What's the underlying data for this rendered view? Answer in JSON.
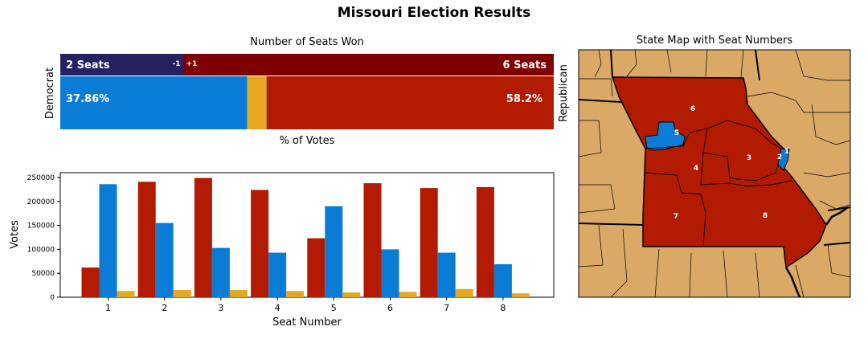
{
  "title": "Missouri Election Results",
  "seats_panel": {
    "title": "Number of Seats Won",
    "dem_axis_label": "Democrat",
    "rep_axis_label": "Republican",
    "xlabel": "% of Votes",
    "dem_seats_text": "2 Seats",
    "rep_seats_text": "6 Seats",
    "dem_change_text": "-1",
    "rep_change_text": "+1",
    "dem_pct_text": "37.86%",
    "rep_pct_text": "58.2%"
  },
  "map_panel": {
    "title": "State Map with Seat Numbers",
    "district_labels": [
      "1",
      "2",
      "3",
      "4",
      "5",
      "6",
      "7",
      "8"
    ]
  },
  "colors": {
    "dem_seat": "#262262",
    "rep_seat": "#7f0000",
    "dem": "#0a7cd6",
    "rep": "#b31b00",
    "other": "#e6a823",
    "map_background": "#dba966"
  },
  "chart_data": [
    {
      "type": "bar",
      "title": "Number of Seats Won",
      "xlabel": "% of Votes",
      "stacked": true,
      "orientation": "horizontal",
      "seats": {
        "Democrat": 2,
        "Republican": 6,
        "total": 8,
        "dem_change": -1,
        "rep_change": 1
      },
      "vote_share_percent": {
        "Democrat": 37.86,
        "Other": 3.94,
        "Republican": 58.2
      }
    },
    {
      "type": "bar",
      "xlabel": "Seat Number",
      "ylabel": "Votes",
      "categories": [
        "1",
        "2",
        "3",
        "4",
        "5",
        "6",
        "7",
        "8"
      ],
      "ylim": [
        0,
        260000
      ],
      "yticks": [
        0,
        50000,
        100000,
        150000,
        200000,
        250000
      ],
      "grid": false,
      "series": [
        {
          "color": "#b31b00",
          "values": [
            62000,
            241000,
            249000,
            224000,
            123000,
            238000,
            228000,
            230000
          ]
        },
        {
          "color": "#0a7cd6",
          "values": [
            236000,
            155000,
            103000,
            93000,
            190000,
            100000,
            93000,
            69000
          ]
        },
        {
          "color": "#e6a823",
          "values": [
            13000,
            15000,
            15000,
            13000,
            10000,
            11000,
            17000,
            8000
          ]
        }
      ]
    }
  ]
}
